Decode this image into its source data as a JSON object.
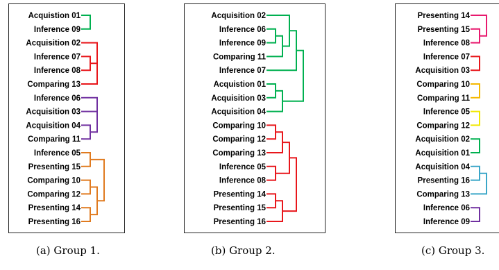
{
  "colors": {
    "green": "#00b050",
    "red": "#e8161b",
    "purple": "#7030a0",
    "orange": "#e07a1f",
    "pink": "#e8196e",
    "gold": "#f5b800",
    "yellow": "#f0e800",
    "cyan": "#3aa6c8"
  },
  "panels": [
    {
      "caption": "(a) Group 1.",
      "leaves": [
        "Acquistion 01",
        "Inference 09",
        "Acquisition 02",
        "Inference 07",
        "Inference 08",
        "Comparing 13",
        "Inference 06",
        "Acquisition 03",
        "Acquisition 04",
        "Comparing 11",
        "Inference 05",
        "Presenting 15",
        "Comparing 10",
        "Comparing 12",
        "Presenting 14",
        "Presenting 16"
      ],
      "merges": [
        {
          "a": 0,
          "b": 1,
          "h": 1,
          "color": "green"
        },
        {
          "a": 3,
          "b": 4,
          "h": 1,
          "color": "red"
        },
        {
          "a": 2,
          "b": -2,
          "h": 2,
          "color": "red"
        },
        {
          "a": -3,
          "b": 5,
          "h": 2,
          "color": "red"
        },
        {
          "a": 6,
          "b": 7,
          "h": 2,
          "color": "purple"
        },
        {
          "a": 8,
          "b": 9,
          "h": 1,
          "color": "purple"
        },
        {
          "a": -5,
          "b": -6,
          "h": 2,
          "color": "purple"
        },
        {
          "a": 10,
          "b": 11,
          "h": 1,
          "color": "orange"
        },
        {
          "a": 12,
          "b": 13,
          "h": 1,
          "color": "orange"
        },
        {
          "a": 14,
          "b": 15,
          "h": 1,
          "color": "orange"
        },
        {
          "a": -9,
          "b": -10,
          "h": 2,
          "color": "orange"
        },
        {
          "a": -8,
          "b": -11,
          "h": 3,
          "color": "orange"
        }
      ]
    },
    {
      "caption": "(b) Group 2.",
      "leaves": [
        "Acquisition 02",
        "Inference 06",
        "Inference 09",
        "Comparing 11",
        "Inference 07",
        "Acquistion 01",
        "Acquisition 03",
        "Acquisition 04",
        "Comparing 10",
        "Comparing 12",
        "Comparing 13",
        "Inference 05",
        "Inference 08",
        "Presenting 14",
        "Presenting 15",
        "Presenting 16"
      ],
      "merges": [
        {
          "a": 1,
          "b": 2,
          "h": 1,
          "color": "green"
        },
        {
          "a": -1,
          "b": 3,
          "h": 2,
          "color": "green"
        },
        {
          "a": 0,
          "b": -2,
          "h": 3,
          "color": "green"
        },
        {
          "a": -3,
          "b": 4,
          "h": 4,
          "color": "green"
        },
        {
          "a": 5,
          "b": 6,
          "h": 1,
          "color": "green"
        },
        {
          "a": -5,
          "b": 7,
          "h": 2,
          "color": "green"
        },
        {
          "a": -4,
          "b": -6,
          "h": 5,
          "color": "green"
        },
        {
          "a": 8,
          "b": 9,
          "h": 1,
          "color": "red"
        },
        {
          "a": -8,
          "b": 10,
          "h": 2,
          "color": "red"
        },
        {
          "a": 11,
          "b": 12,
          "h": 1,
          "color": "red"
        },
        {
          "a": -9,
          "b": -10,
          "h": 3,
          "color": "red"
        },
        {
          "a": 13,
          "b": 14,
          "h": 1,
          "color": "red"
        },
        {
          "a": -12,
          "b": 15,
          "h": 2,
          "color": "red"
        },
        {
          "a": -11,
          "b": -13,
          "h": 4,
          "color": "red"
        }
      ]
    },
    {
      "caption": "(c) Group 3.",
      "leaves": [
        "Presenting 14",
        "Presenting 15",
        "Inference 08",
        "Inference 07",
        "Acquisition 03",
        "Comparing 10",
        "Comparing 11",
        "Inference 05",
        "Comparing 12",
        "Acquisition 02",
        "Acquisition 01",
        "Acquisition 04",
        "Presenting 16",
        "Comparing 13",
        "Inference 06",
        "Inference 09"
      ],
      "merges": [
        {
          "a": 1,
          "b": 2,
          "h": 1,
          "color": "pink"
        },
        {
          "a": 0,
          "b": -1,
          "h": 2,
          "color": "pink"
        },
        {
          "a": 3,
          "b": 4,
          "h": 1,
          "color": "red"
        },
        {
          "a": 5,
          "b": 6,
          "h": 1,
          "color": "gold"
        },
        {
          "a": 7,
          "b": 8,
          "h": 1,
          "color": "yellow"
        },
        {
          "a": 9,
          "b": 10,
          "h": 1,
          "color": "green"
        },
        {
          "a": 11,
          "b": 12,
          "h": 1,
          "color": "cyan"
        },
        {
          "a": -7,
          "b": 13,
          "h": 2,
          "color": "cyan"
        },
        {
          "a": 14,
          "b": 15,
          "h": 1,
          "color": "purple"
        }
      ]
    }
  ]
}
